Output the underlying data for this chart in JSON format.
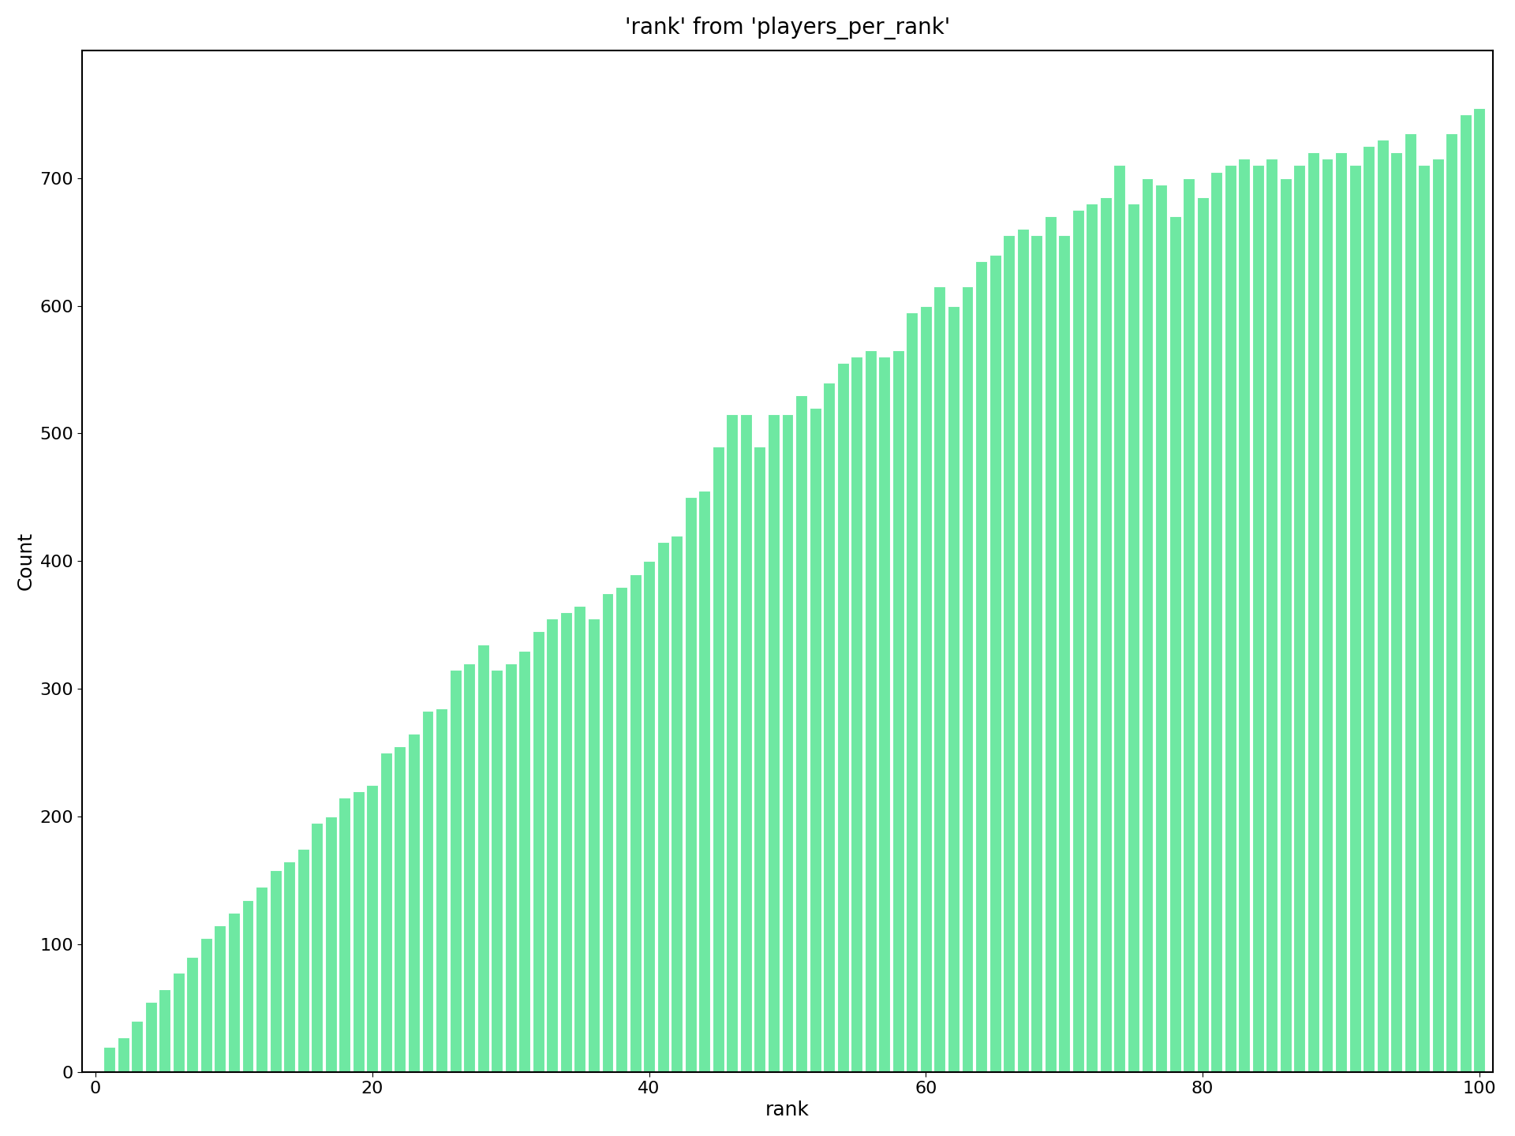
{
  "title": "'rank' from 'players_per_rank'",
  "xlabel": "rank",
  "ylabel": "Count",
  "bar_color": "#6ee8a2",
  "bar_edge_color": "white",
  "xlim": [
    -1,
    101
  ],
  "ylim": [
    0,
    800
  ],
  "yticks": [
    0,
    100,
    200,
    300,
    400,
    500,
    600,
    700
  ],
  "xticks": [
    0,
    20,
    40,
    60,
    80,
    100
  ],
  "title_fontsize": 20,
  "label_fontsize": 18,
  "tick_fontsize": 16,
  "bar_width": 0.85,
  "background_color": "#ffffff",
  "counts": [
    20,
    27,
    40,
    55,
    65,
    78,
    90,
    105,
    115,
    125,
    135,
    145,
    158,
    165,
    175,
    195,
    200,
    215,
    220,
    225,
    250,
    255,
    265,
    283,
    285,
    315,
    320,
    335,
    315,
    320,
    330,
    345,
    355,
    360,
    365,
    355,
    375,
    380,
    390,
    400,
    415,
    420,
    450,
    455,
    490,
    515,
    515,
    490,
    515,
    515,
    530,
    520,
    540,
    555,
    560,
    565,
    560,
    565,
    595,
    600,
    615,
    600,
    615,
    635,
    640,
    655,
    660,
    655,
    670,
    655,
    675,
    680,
    685,
    710,
    680,
    700,
    695,
    670,
    700,
    685,
    705,
    710,
    715,
    710,
    715,
    700,
    710,
    720,
    715,
    720,
    710,
    725,
    730,
    720,
    735,
    710,
    715,
    735,
    750,
    755
  ]
}
